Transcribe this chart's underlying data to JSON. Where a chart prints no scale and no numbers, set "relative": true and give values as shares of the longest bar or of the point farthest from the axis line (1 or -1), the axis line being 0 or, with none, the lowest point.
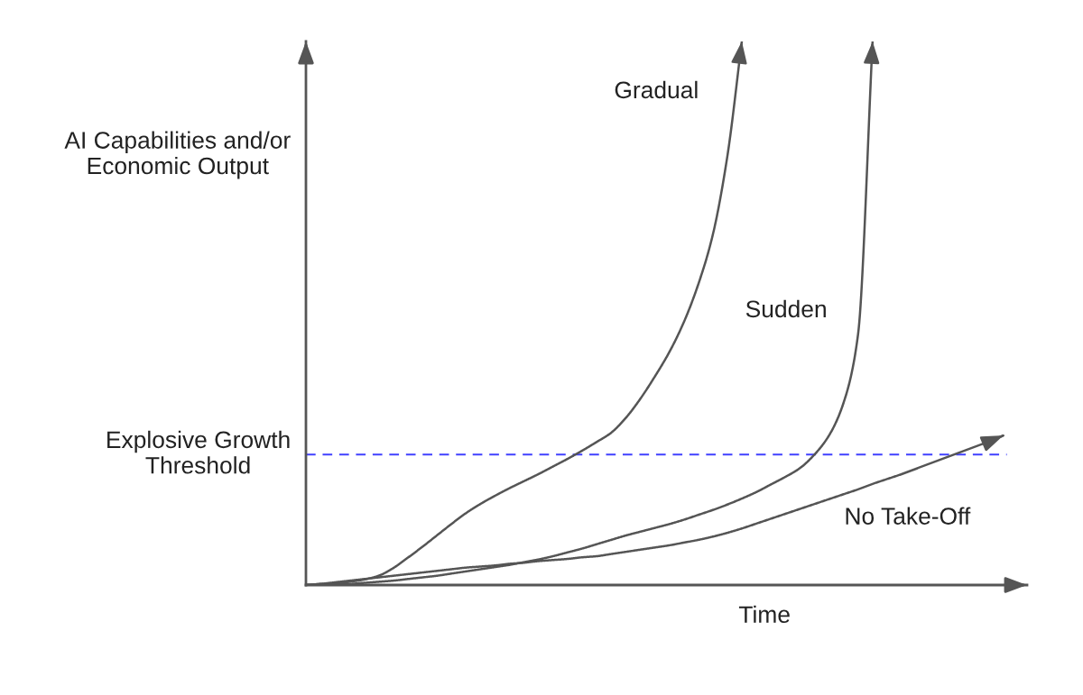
{
  "chart_data": {
    "type": "line",
    "relative": true,
    "xlabel": "Time",
    "ylabel": "AI Capabilities and/or Economic Output",
    "categories": [
      null,
      null,
      null,
      null,
      null,
      null,
      null,
      null,
      null,
      null,
      null,
      null,
      null,
      null,
      null,
      null,
      null,
      null,
      null,
      null,
      null,
      null,
      null,
      null,
      null,
      null,
      null,
      null,
      null,
      null,
      null,
      null,
      null,
      null,
      null,
      null,
      null,
      null,
      null,
      null,
      null,
      null,
      null,
      null,
      null,
      null,
      null,
      null,
      null
    ],
    "series": [
      {
        "name": "Gradual",
        "color": "#555555",
        "values": [
          0,
          0.002,
          0.003,
          0.006,
          0.01,
          0.017,
          0.031,
          0.05,
          0.07,
          0.091,
          0.112,
          0.132,
          0.149,
          0.164,
          0.178,
          0.191,
          0.204,
          0.218,
          0.232,
          0.247,
          0.263,
          0.28,
          0.307,
          0.342,
          0.383,
          0.428,
          0.483,
          0.553,
          0.644,
          0.788,
          1.0,
          null,
          null,
          null,
          null,
          null,
          null,
          null,
          null,
          null,
          null,
          null,
          null,
          null,
          null,
          null,
          null,
          null,
          null
        ]
      },
      {
        "name": "Sudden",
        "color": "#555555",
        "values": [
          0,
          0,
          0.001,
          0.002,
          0.004,
          0.006,
          0.008,
          0.011,
          0.014,
          0.017,
          0.021,
          0.025,
          0.029,
          0.033,
          0.037,
          0.042,
          0.047,
          0.053,
          0.06,
          0.067,
          0.075,
          0.083,
          0.091,
          0.098,
          0.105,
          0.112,
          0.12,
          0.129,
          0.138,
          0.148,
          0.159,
          0.171,
          0.185,
          0.199,
          0.215,
          0.24,
          0.275,
          0.335,
          0.461,
          1.0,
          null,
          null,
          null,
          null,
          null,
          null,
          null,
          null,
          null
        ]
      },
      {
        "name": "No Take-Off",
        "color": "#555555",
        "values": [
          0,
          0.002,
          0.005,
          0.008,
          0.011,
          0.014,
          0.017,
          0.02,
          0.023,
          0.026,
          0.029,
          0.032,
          0.034,
          0.036,
          0.039,
          0.041,
          0.044,
          0.046,
          0.048,
          0.051,
          0.053,
          0.057,
          0.061,
          0.065,
          0.069,
          0.073,
          0.078,
          0.083,
          0.089,
          0.096,
          0.104,
          0.113,
          0.122,
          0.131,
          0.14,
          0.149,
          0.158,
          0.167,
          0.176,
          0.186,
          0.195,
          0.204,
          0.214,
          0.224,
          0.234,
          0.244,
          0.254,
          0.264,
          0.275
        ]
      }
    ],
    "ref_lines": [
      {
        "axis": "y",
        "value": 0.24,
        "label": "Explosive Growth Threshold",
        "color": "#4040ff",
        "line_style": "dashed"
      }
    ]
  }
}
